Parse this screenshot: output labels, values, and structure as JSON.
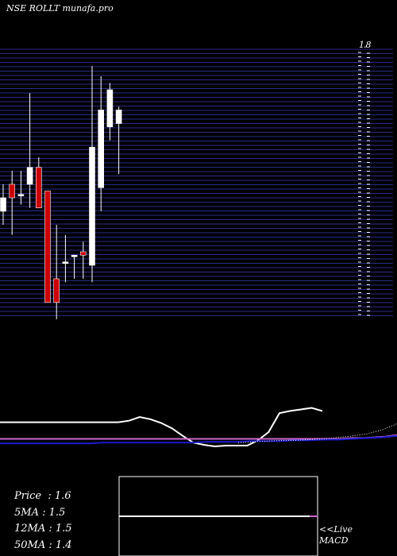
{
  "header": {
    "title": "NSE ROLLT munafa.pro"
  },
  "price_scale": {
    "top_label": "1.8"
  },
  "stats": [
    {
      "label": "Price",
      "sep": "  : ",
      "value": "1.6"
    },
    {
      "label": "5MA",
      "sep": " : ",
      "value": "1.5"
    },
    {
      "label": "12MA",
      "sep": " : ",
      "value": "1.5"
    },
    {
      "label": "50MA",
      "sep": " : ",
      "value": "1.4"
    }
  ],
  "macd_panel": {
    "live_label": "<<Live",
    "name": "MACD"
  },
  "colors": {
    "background": "#000000",
    "grid": "#2a2a8a",
    "up_candle": "#ffffff",
    "down_candle": "#cc0000",
    "line_white": "#ffffff",
    "line_pink": "#cc66cc",
    "line_blue": "#1a1acc"
  },
  "chart_data": {
    "type": "candlestick",
    "ylim": [
      1.0,
      1.8
    ],
    "candles": [
      {
        "open": 1.32,
        "high": 1.4,
        "low": 1.28,
        "close": 1.36
      },
      {
        "open": 1.4,
        "high": 1.44,
        "low": 1.25,
        "close": 1.36
      },
      {
        "open": 1.37,
        "high": 1.44,
        "low": 1.34,
        "close": 1.37
      },
      {
        "open": 1.4,
        "high": 1.67,
        "low": 1.33,
        "close": 1.45
      },
      {
        "open": 1.45,
        "high": 1.48,
        "low": 1.33,
        "close": 1.33
      },
      {
        "open": 1.38,
        "high": 1.38,
        "low": 1.05,
        "close": 1.05
      },
      {
        "open": 1.12,
        "high": 1.28,
        "low": 1.0,
        "close": 1.05
      },
      {
        "open": 1.17,
        "high": 1.25,
        "low": 1.11,
        "close": 1.17
      },
      {
        "open": 1.19,
        "high": 1.19,
        "low": 1.12,
        "close": 1.19
      },
      {
        "open": 1.2,
        "high": 1.23,
        "low": 1.12,
        "close": 1.19
      },
      {
        "open": 1.16,
        "high": 1.75,
        "low": 1.11,
        "close": 1.51
      },
      {
        "open": 1.39,
        "high": 1.72,
        "low": 1.32,
        "close": 1.62
      },
      {
        "open": 1.57,
        "high": 1.7,
        "low": 1.53,
        "close": 1.68
      },
      {
        "open": 1.58,
        "high": 1.63,
        "low": 1.43,
        "close": 1.62
      }
    ],
    "moving_averages": [
      {
        "name": "price-line",
        "color": "#ffffff",
        "values": [
          0.72,
          0.72,
          0.72,
          0.72,
          0.72,
          0.72,
          0.72,
          0.72,
          0.72,
          0.72,
          0.72,
          0.72,
          0.74,
          0.79,
          0.76,
          0.71,
          0.64,
          0.54,
          0.45,
          0.42,
          0.4,
          0.41,
          0.41,
          0.41,
          0.48,
          0.59,
          0.84,
          0.87,
          0.89,
          0.91,
          0.87
        ]
      },
      {
        "name": "ma-pink",
        "color": "#cc66cc",
        "values": [
          0.5,
          0.5,
          0.5,
          0.5,
          0.5,
          0.5,
          0.5,
          0.5,
          0.5,
          0.5,
          0.5,
          0.5,
          0.5,
          0.5,
          0.5,
          0.5,
          0.5,
          0.5,
          0.5,
          0.5,
          0.5,
          0.5,
          0.5,
          0.5,
          0.5,
          0.5,
          0.5,
          0.5,
          0.5,
          0.5,
          0.5,
          0.51,
          0.51,
          0.52,
          0.53,
          0.55
        ]
      },
      {
        "name": "ma-blue",
        "color": "#1a1acc",
        "values": [
          0.44,
          0.44,
          0.44,
          0.44,
          0.44,
          0.44,
          0.44,
          0.45,
          0.45,
          0.45,
          0.45,
          0.45,
          0.45,
          0.45,
          0.46,
          0.46,
          0.46,
          0.47,
          0.47,
          0.47,
          0.48,
          0.48,
          0.49,
          0.49,
          0.5,
          0.51,
          0.52,
          0.54
        ]
      },
      {
        "name": "ma-dotted",
        "color": "#ffffff",
        "values": [
          0.45,
          0.46,
          0.47,
          0.48,
          0.48,
          0.49,
          0.5,
          0.52,
          0.54,
          0.57,
          0.62,
          0.7
        ]
      }
    ],
    "macd": {
      "values": [
        0.5,
        0.5
      ]
    }
  }
}
